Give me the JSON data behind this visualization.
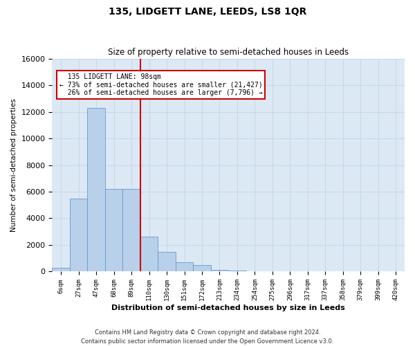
{
  "title": "135, LIDGETT LANE, LEEDS, LS8 1QR",
  "subtitle": "Size of property relative to semi-detached houses in Leeds",
  "xlabel": "Distribution of semi-detached houses by size in Leeds",
  "ylabel": "Number of semi-detached properties",
  "footer": "Contains HM Land Registry data © Crown copyright and database right 2024.\nContains public sector information licensed under the Open Government Licence v3.0.",
  "property_label": "135 LIDGETT LANE: 98sqm",
  "pct_smaller": 73,
  "pct_larger": 26,
  "n_smaller": "21,427",
  "n_larger": "7,796",
  "bar_color": "#b8d0ea",
  "bar_edge_color": "#6699cc",
  "vline_color": "#cc0000",
  "annotation_box_edge": "#cc0000",
  "grid_color": "#c8d8ea",
  "background_color": "#dce9f5",
  "ylim": [
    0,
    16000
  ],
  "yticks": [
    0,
    2000,
    4000,
    6000,
    8000,
    10000,
    12000,
    14000,
    16000
  ],
  "bin_labels": [
    "6sqm",
    "27sqm",
    "47sqm",
    "68sqm",
    "89sqm",
    "110sqm",
    "130sqm",
    "151sqm",
    "172sqm",
    "213sqm",
    "234sqm",
    "254sqm",
    "275sqm",
    "296sqm",
    "317sqm",
    "337sqm",
    "358sqm",
    "379sqm",
    "399sqm",
    "420sqm"
  ],
  "bin_values": [
    300,
    5500,
    12300,
    6200,
    6200,
    2600,
    1500,
    700,
    500,
    150,
    100,
    50,
    0,
    0,
    0,
    0,
    0,
    0,
    0,
    0
  ],
  "vline_x_index": 4.5
}
